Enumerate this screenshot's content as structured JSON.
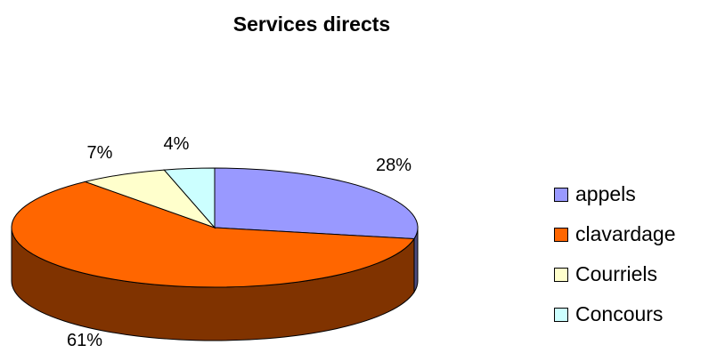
{
  "chart_data": {
    "type": "pie",
    "title": "Services directs",
    "slices": [
      {
        "label": "appels",
        "value": 28,
        "display": "28%",
        "color": "#9999FF",
        "side_color": "#4D4D80"
      },
      {
        "label": "clavardage",
        "value": 61,
        "display": "61%",
        "color": "#FF6600",
        "side_color": "#803300"
      },
      {
        "label": "Courriels",
        "value": 7,
        "display": "7%",
        "color": "#FFFFCC",
        "side_color": "#808066"
      },
      {
        "label": "Concours",
        "value": 4,
        "display": "4%",
        "color": "#CCFFFF",
        "side_color": "#668080"
      }
    ],
    "legend_position": "right",
    "style": "3d-pie"
  }
}
